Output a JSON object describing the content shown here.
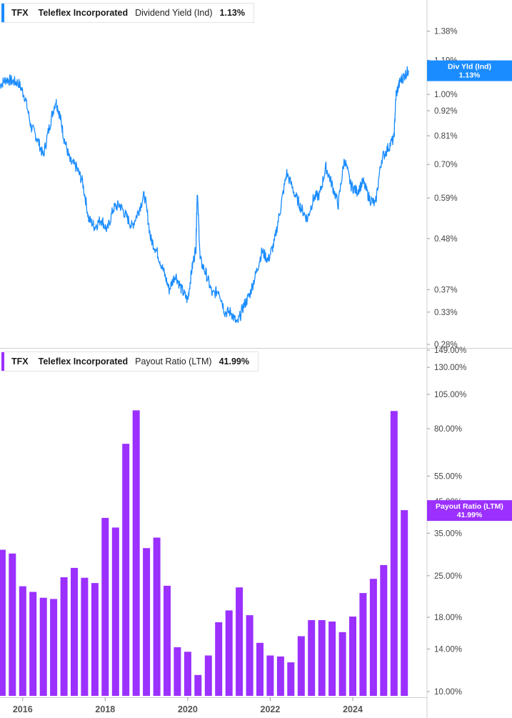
{
  "panels": {
    "top": {
      "ticker": "TFX",
      "company": "Teleflex Incorporated",
      "metric": "Dividend Yield (Ind)",
      "value": "1.13%",
      "tag_title": "Div Yld (Ind)",
      "tag_value": "1.13%",
      "color": "#1a8cff"
    },
    "bottom": {
      "ticker": "TFX",
      "company": "Teleflex Incorporated",
      "metric": "Payout Ratio (LTM)",
      "value": "41.99%",
      "tag_title": "Payout Ratio (LTM)",
      "tag_value": "41.99%",
      "color": "#9b30ff"
    }
  },
  "chart_data": [
    {
      "type": "line",
      "title": "TFX Teleflex Incorporated Dividend Yield (Ind) 1.13%",
      "y_scale": "log",
      "ylim": [
        0.28,
        1.45
      ],
      "y_ticks": [
        "1.38%",
        "1.19%",
        "1.00%",
        "0.92%",
        "0.81%",
        "0.70%",
        "0.59%",
        "0.48%",
        "0.37%",
        "0.33%",
        "0.28%"
      ],
      "y_tick_values": [
        1.38,
        1.19,
        1.0,
        0.92,
        0.81,
        0.7,
        0.59,
        0.48,
        0.37,
        0.33,
        0.28
      ],
      "x_ticks": [
        "2016",
        "2018",
        "2020",
        "2022",
        "2024"
      ],
      "xlim": [
        2015.45,
        2025.8
      ],
      "series": [
        {
          "x": [
            2015.45,
            2015.6,
            2015.75,
            2015.9,
            2016.05,
            2016.2,
            2016.35,
            2016.5,
            2016.65,
            2016.8,
            2016.9,
            2017.0,
            2017.15,
            2017.3,
            2017.45,
            2017.6,
            2017.75,
            2017.9,
            2018.05,
            2018.2,
            2018.35,
            2018.5,
            2018.65,
            2018.8,
            2018.95,
            2019.1,
            2019.25,
            2019.4,
            2019.55,
            2019.7,
            2019.85,
            2020.0,
            2020.1,
            2020.2,
            2020.23,
            2020.3,
            2020.45,
            2020.6,
            2020.75,
            2020.9,
            2021.05,
            2021.2,
            2021.35,
            2021.5,
            2021.65,
            2021.8,
            2021.95,
            2022.1,
            2022.25,
            2022.4,
            2022.6,
            2022.75,
            2022.9,
            2023.05,
            2023.2,
            2023.35,
            2023.5,
            2023.65,
            2023.8,
            2023.95,
            2024.1,
            2024.25,
            2024.4,
            2024.55,
            2024.7,
            2024.85,
            2025.0,
            2025.05,
            2025.15,
            2025.25,
            2025.35
          ],
          "values": [
            1.05,
            1.08,
            1.07,
            1.06,
            0.99,
            0.85,
            0.8,
            0.73,
            0.85,
            0.97,
            0.9,
            0.8,
            0.71,
            0.69,
            0.64,
            0.53,
            0.51,
            0.53,
            0.5,
            0.56,
            0.57,
            0.54,
            0.51,
            0.55,
            0.6,
            0.48,
            0.45,
            0.41,
            0.37,
            0.4,
            0.37,
            0.35,
            0.41,
            0.46,
            0.61,
            0.43,
            0.4,
            0.36,
            0.37,
            0.33,
            0.33,
            0.31,
            0.34,
            0.36,
            0.4,
            0.45,
            0.43,
            0.47,
            0.56,
            0.67,
            0.6,
            0.56,
            0.53,
            0.59,
            0.6,
            0.69,
            0.63,
            0.57,
            0.72,
            0.63,
            0.61,
            0.64,
            0.59,
            0.57,
            0.72,
            0.76,
            0.8,
            1.0,
            1.07,
            1.1,
            1.13
          ]
        }
      ]
    },
    {
      "type": "bar",
      "title": "TFX Teleflex Incorporated Payout Ratio (LTM) 41.99%",
      "y_scale": "log",
      "ylim": [
        10,
        149
      ],
      "y_ticks": [
        "149.00%",
        "130.00%",
        "105.00%",
        "80.00%",
        "55.00%",
        "45.00%",
        "35.00%",
        "25.00%",
        "18.00%",
        "14.00%",
        "10.00%"
      ],
      "y_tick_values": [
        149,
        130,
        105,
        80,
        55,
        45,
        35,
        25,
        18,
        14,
        10
      ],
      "x_ticks": [
        "2016",
        "2018",
        "2020",
        "2022",
        "2024"
      ],
      "xlim": [
        2015.45,
        2025.8
      ],
      "series": [
        {
          "x": [
            2015.5,
            2015.75,
            2016.0,
            2016.25,
            2016.5,
            2016.75,
            2017.0,
            2017.25,
            2017.5,
            2017.75,
            2018.0,
            2018.25,
            2018.5,
            2018.75,
            2019.0,
            2019.25,
            2019.5,
            2019.75,
            2020.0,
            2020.25,
            2020.5,
            2020.75,
            2021.0,
            2021.25,
            2021.5,
            2021.75,
            2022.0,
            2022.25,
            2022.5,
            2022.75,
            2023.0,
            2023.25,
            2023.5,
            2023.75,
            2024.0,
            2024.25,
            2024.5,
            2024.75,
            2025.0,
            2025.25
          ],
          "values": [
            30.7,
            29.8,
            23.0,
            22.0,
            21.0,
            20.8,
            24.7,
            26.6,
            24.6,
            23.6,
            39.5,
            36.6,
            71.0,
            92.5,
            31.1,
            33.8,
            23.1,
            14.2,
            13.7,
            11.4,
            13.3,
            17.3,
            19.0,
            22.8,
            18.3,
            14.7,
            13.3,
            13.2,
            12.6,
            15.5,
            17.6,
            17.6,
            17.4,
            16.0,
            18.1,
            21.8,
            24.4,
            27.2,
            92.0,
            41.99
          ]
        }
      ]
    }
  ]
}
